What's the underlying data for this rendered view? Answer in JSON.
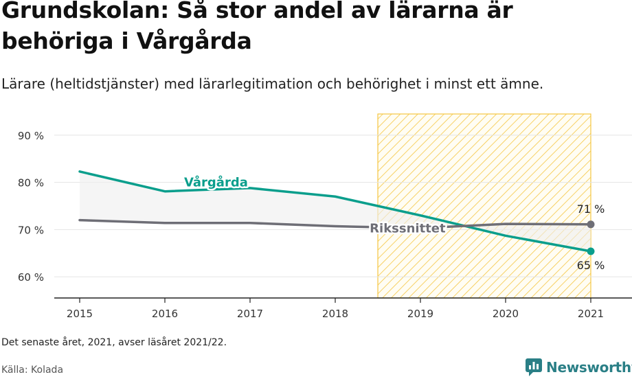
{
  "title": "Grundskolan: Så stor andel av lärarna är behöriga i Vårgårda",
  "subtitle": "Lärare (heltidstjänster) med lärarlegitimation och behörighet i minst ett ämne.",
  "note": "Det senaste året, 2021, avser läsåret 2021/22.",
  "source": "Källa: Kolada",
  "brand": {
    "name": "Newsworthy",
    "icon": "newsworthy-logo-icon",
    "color": "#2a7f86"
  },
  "chart_data": {
    "type": "line",
    "x": [
      2015,
      2016,
      2017,
      2018,
      2019,
      2020,
      2021
    ],
    "x_tick_labels": [
      "2015",
      "2016",
      "2017",
      "2018",
      "2019",
      "2020",
      "2021"
    ],
    "y_tick_values": [
      60,
      70,
      80,
      90
    ],
    "y_tick_labels": [
      "60 %",
      "70 %",
      "80 %",
      "90 %"
    ],
    "ylim": [
      55.5,
      94.5
    ],
    "grid": true,
    "series": [
      {
        "name": "Vårgårda",
        "color": "#0a9e8c",
        "values": [
          82.3,
          78.1,
          78.8,
          77.0,
          73.0,
          68.7,
          65.4
        ],
        "end_label": "65 %"
      },
      {
        "name": "Rikssnittet",
        "color": "#6e6e76",
        "values": [
          72.0,
          71.4,
          71.4,
          70.7,
          70.3,
          71.2,
          71.1
        ],
        "end_label": "71 %"
      }
    ],
    "highlight_range": [
      2018.5,
      2021
    ],
    "highlight_color": "#f5c642"
  }
}
